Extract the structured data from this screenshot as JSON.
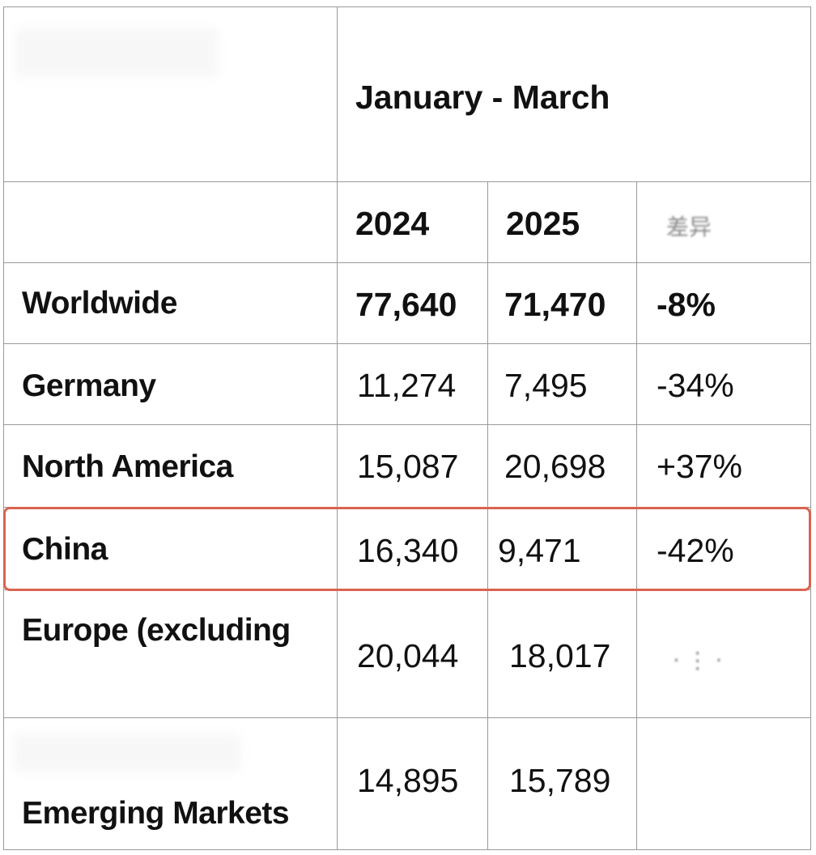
{
  "header": {
    "period": "January - March"
  },
  "columns": {
    "y2024": "2024",
    "y2025": "2025",
    "change_obscured": "差异"
  },
  "rows": [
    {
      "label": "Worldwide",
      "v2024": "77,640",
      "v2025": "71,470",
      "change": "-8%"
    },
    {
      "label": "Germany",
      "v2024": "11,274",
      "v2025": "7,495",
      "change": "-34%"
    },
    {
      "label": "North America",
      "v2024": "15,087",
      "v2025": "20,698",
      "change": "+37%"
    },
    {
      "label": "China",
      "v2024": "16,340",
      "v2025": "9,471",
      "change": "-42%"
    },
    {
      "label": "Europe (excluding",
      "v2024": "20,044",
      "v2025": "18,017",
      "change": ""
    },
    {
      "label": "Emerging Markets",
      "v2024": "14,895",
      "v2025": "15,789",
      "change": ""
    }
  ],
  "highlight": {
    "row": "China",
    "color": "#d9644f"
  }
}
